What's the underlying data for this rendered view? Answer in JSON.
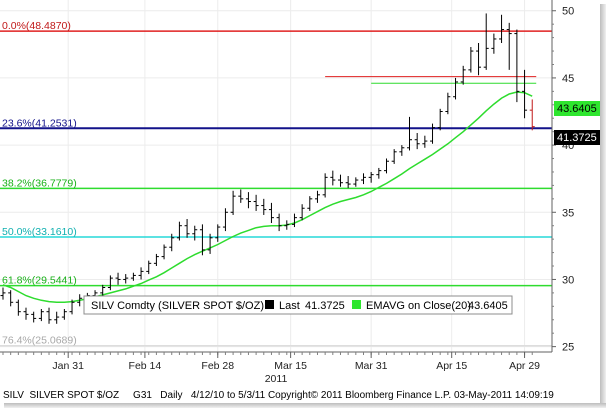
{
  "chart_data": {
    "type": "line",
    "title": "",
    "x_tick_labels": [
      "Jan 31",
      "Feb 14",
      "Feb 28",
      "Mar 15",
      "Mar 31",
      "Apr 15",
      "Apr 29"
    ],
    "year_label": "2011",
    "y_ticks": [
      25,
      30,
      35,
      40,
      45,
      50
    ],
    "ylim": [
      24.6,
      50.8
    ],
    "legend": {
      "ticker": "SILV Comdty (SILVER SPOT $/OZ)",
      "series": [
        {
          "name": "Last",
          "value": "41.3725",
          "color": "#000000"
        },
        {
          "name": "EMAVG on Close(20)",
          "value": "43.6405",
          "color": "#2ee62e"
        }
      ]
    },
    "footer": "SILV  SILVER SPOT $/OZ     G31   Daily   4/12/10 to 5/3/11 Copyright© 2011 Bloomberg Finance L.P. 03-May-2011 14:09:19",
    "price_tag_last": "41.3725",
    "price_tag_ema": "43.6405",
    "fib_levels": [
      {
        "label": "0.0%(48.4870)",
        "value": 48.487,
        "color": "#e02020",
        "label_color": "#c01818"
      },
      {
        "label": "23.6%(41.2531)",
        "value": 41.2531,
        "color": "#12128a",
        "label_color": "#12128a"
      },
      {
        "label": "38.2%(36.7779)",
        "value": 36.7779,
        "color": "#2edc2e",
        "label_color": "#18b018"
      },
      {
        "label": "50.0%(33.1610)",
        "value": 33.161,
        "color": "#26d8d8",
        "label_color": "#10b0b0"
      },
      {
        "label": "61.8%(29.5441)",
        "value": 29.5441,
        "color": "#2edc2e",
        "label_color": "#18b018"
      },
      {
        "label": "76.4%(25.0689)",
        "value": 25.0689,
        "color": "#dddddd",
        "label_color": "#a8a8a8"
      }
    ],
    "ohlc": [
      [
        28.8,
        29.4,
        28.5,
        29.0
      ],
      [
        29.0,
        29.2,
        28.0,
        28.3
      ],
      [
        28.3,
        28.5,
        27.3,
        27.6
      ],
      [
        27.6,
        27.9,
        27.0,
        27.4
      ],
      [
        27.4,
        27.6,
        26.8,
        27.1
      ],
      [
        27.1,
        27.8,
        26.9,
        27.6
      ],
      [
        27.6,
        27.9,
        26.7,
        27.0
      ],
      [
        27.0,
        27.6,
        26.7,
        27.2
      ],
      [
        27.2,
        27.8,
        27.0,
        27.6
      ],
      [
        27.6,
        28.5,
        27.4,
        28.3
      ],
      [
        28.3,
        28.9,
        28.0,
        28.6
      ],
      [
        28.6,
        29.0,
        28.3,
        28.8
      ],
      [
        28.8,
        29.2,
        28.5,
        29.0
      ],
      [
        29.0,
        29.6,
        28.7,
        29.4
      ],
      [
        29.4,
        30.3,
        29.2,
        30.1
      ],
      [
        30.1,
        30.5,
        29.6,
        30.0
      ],
      [
        30.0,
        30.4,
        29.7,
        30.1
      ],
      [
        30.1,
        30.5,
        29.9,
        30.3
      ],
      [
        30.3,
        30.9,
        30.0,
        30.6
      ],
      [
        30.6,
        31.4,
        30.4,
        31.2
      ],
      [
        31.2,
        31.9,
        31.0,
        31.7
      ],
      [
        31.7,
        32.6,
        31.5,
        32.4
      ],
      [
        32.4,
        33.4,
        32.1,
        33.1
      ],
      [
        33.1,
        34.3,
        32.9,
        34.0
      ],
      [
        34.0,
        34.5,
        33.1,
        33.4
      ],
      [
        33.4,
        34.0,
        32.9,
        33.7
      ],
      [
        33.7,
        34.1,
        31.8,
        32.2
      ],
      [
        32.2,
        33.4,
        31.9,
        33.1
      ],
      [
        33.1,
        34.1,
        32.8,
        33.9
      ],
      [
        33.9,
        35.3,
        33.6,
        35.0
      ],
      [
        35.0,
        36.6,
        34.8,
        36.2
      ],
      [
        36.2,
        36.7,
        35.7,
        36.0
      ],
      [
        36.0,
        36.5,
        35.3,
        35.8
      ],
      [
        35.8,
        36.3,
        35.1,
        35.5
      ],
      [
        35.5,
        36.0,
        34.8,
        35.2
      ],
      [
        35.2,
        35.7,
        34.2,
        34.6
      ],
      [
        34.6,
        34.9,
        33.6,
        34.0
      ],
      [
        34.0,
        34.4,
        33.7,
        34.1
      ],
      [
        34.1,
        34.9,
        33.9,
        34.6
      ],
      [
        34.6,
        35.6,
        34.4,
        35.3
      ],
      [
        35.3,
        36.2,
        35.1,
        36.0
      ],
      [
        36.0,
        36.6,
        35.7,
        36.3
      ],
      [
        36.3,
        37.9,
        36.1,
        37.6
      ],
      [
        37.6,
        38.1,
        37.0,
        37.4
      ],
      [
        37.4,
        37.8,
        36.9,
        37.2
      ],
      [
        37.2,
        37.7,
        36.8,
        37.1
      ],
      [
        37.1,
        37.6,
        36.9,
        37.4
      ],
      [
        37.4,
        37.9,
        37.1,
        37.6
      ],
      [
        37.6,
        38.0,
        37.2,
        37.8
      ],
      [
        37.8,
        38.3,
        37.5,
        38.1
      ],
      [
        38.1,
        39.0,
        37.9,
        38.8
      ],
      [
        38.8,
        39.7,
        38.6,
        39.5
      ],
      [
        39.5,
        40.0,
        39.2,
        39.8
      ],
      [
        39.8,
        42.1,
        39.6,
        40.4
      ],
      [
        40.4,
        40.9,
        39.7,
        40.1
      ],
      [
        40.1,
        40.7,
        39.8,
        40.3
      ],
      [
        40.3,
        41.6,
        40.1,
        41.3
      ],
      [
        41.3,
        42.7,
        41.1,
        42.5
      ],
      [
        42.5,
        43.9,
        42.3,
        43.6
      ],
      [
        43.6,
        45.0,
        43.4,
        44.7
      ],
      [
        44.7,
        45.9,
        44.5,
        45.6
      ],
      [
        45.6,
        47.3,
        45.4,
        47.0
      ],
      [
        47.0,
        47.6,
        45.2,
        45.8
      ],
      [
        45.8,
        49.8,
        45.6,
        47.2
      ],
      [
        47.2,
        48.3,
        46.8,
        47.9
      ],
      [
        47.9,
        49.7,
        47.6,
        48.6
      ],
      [
        48.6,
        49.1,
        45.6,
        48.3
      ],
      [
        48.3,
        48.6,
        43.2,
        44.0
      ],
      [
        44.0,
        45.6,
        42.0,
        42.6
      ],
      [
        42.6,
        43.4,
        41.1,
        41.3725
      ]
    ],
    "ema20": [
      29.6,
      29.4,
      29.1,
      28.8,
      28.6,
      28.45,
      28.35,
      28.3,
      28.3,
      28.35,
      28.45,
      28.55,
      28.7,
      28.85,
      29.0,
      29.15,
      29.3,
      29.5,
      29.7,
      29.95,
      30.2,
      30.5,
      30.85,
      31.2,
      31.55,
      31.85,
      32.1,
      32.35,
      32.6,
      32.9,
      33.2,
      33.45,
      33.65,
      33.85,
      33.95,
      34.0,
      34.0,
      34.05,
      34.2,
      34.45,
      34.75,
      35.05,
      35.35,
      35.6,
      35.8,
      35.95,
      36.1,
      36.3,
      36.55,
      36.85,
      37.15,
      37.5,
      37.85,
      38.25,
      38.6,
      38.95,
      39.3,
      39.7,
      40.1,
      40.55,
      41.0,
      41.5,
      42.0,
      42.55,
      43.05,
      43.5,
      43.8,
      43.95,
      43.9,
      43.6405
    ],
    "extra_levels": [
      {
        "value": 45.1,
        "x_from_index": 42,
        "x_to_index": 69,
        "color": "#e02020"
      },
      {
        "value": 44.6,
        "x_from_index": 48,
        "x_to_index": 69,
        "color": "#2edc2e"
      }
    ]
  }
}
